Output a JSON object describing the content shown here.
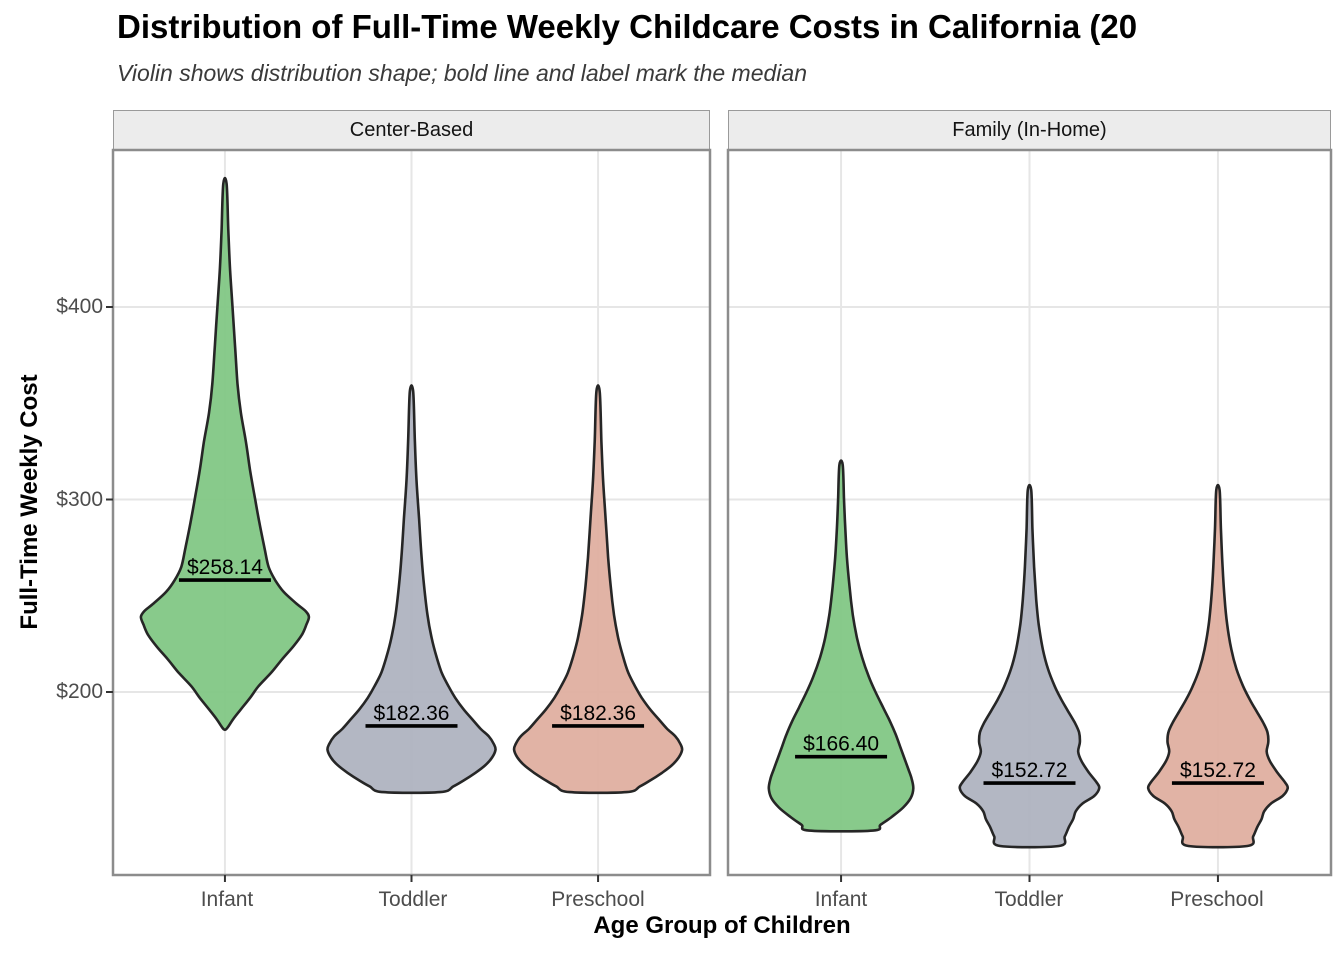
{
  "header": {
    "title": "Distribution of Full-Time Weekly Childcare Costs in California (20",
    "subtitle": "Violin shows distribution shape; bold line and label mark the median"
  },
  "axes": {
    "x_title": "Age Group of Children",
    "y_title": "Full-Time Weekly Cost"
  },
  "chart_data": {
    "type": "violin",
    "title": "Distribution of Full-Time Weekly Childcare Costs in California (20",
    "subtitle": "Violin shows distribution shape; bold line and label mark the median",
    "xlabel": "Age Group of Children",
    "ylabel": "Full-Time Weekly Cost",
    "grid": "major-only",
    "legend": "none",
    "ylim_approx": [
      105,
      482
    ],
    "y_ticks": [
      {
        "value": 400,
        "label": "$400"
      },
      {
        "value": 300,
        "label": "$300"
      },
      {
        "value": 200,
        "label": "$200"
      }
    ],
    "categories": [
      "Infant",
      "Toddler",
      "Preschool"
    ],
    "colors": {
      "infant_fill": "#82C785",
      "toddler_fill": "#AFB3C0",
      "preschool_fill": "#DFAFA0",
      "violin_outline": "#262626",
      "median_line": "#000000",
      "gridline": "#E6E6E6",
      "panel_border": "#8C8C8C",
      "strip_bg": "#ECECEC"
    },
    "facets": [
      {
        "label": "Center-Based",
        "violins": [
          {
            "category": "Infant",
            "fill": "#82C785",
            "median": 258.14,
            "median_label": "$258.14",
            "min": 180.5,
            "max": 464,
            "profile": [
              [
                464,
                0.02
              ],
              [
                440,
                0.04
              ],
              [
                420,
                0.06
              ],
              [
                400,
                0.09
              ],
              [
                380,
                0.12
              ],
              [
                360,
                0.15
              ],
              [
                345,
                0.19
              ],
              [
                330,
                0.25
              ],
              [
                315,
                0.3
              ],
              [
                300,
                0.36
              ],
              [
                288,
                0.41
              ],
              [
                275,
                0.47
              ],
              [
                265,
                0.52
              ],
              [
                258,
                0.6
              ],
              [
                252,
                0.7
              ],
              [
                246,
                0.85
              ],
              [
                242,
                0.96
              ],
              [
                239,
                1.0
              ],
              [
                235,
                0.97
              ],
              [
                230,
                0.92
              ],
              [
                224,
                0.82
              ],
              [
                217,
                0.68
              ],
              [
                210,
                0.55
              ],
              [
                203,
                0.4
              ],
              [
                197,
                0.3
              ],
              [
                191,
                0.19
              ],
              [
                186,
                0.1
              ],
              [
                182,
                0.04
              ],
              [
                180.5,
                0.01
              ]
            ]
          },
          {
            "category": "Toddler",
            "fill": "#AFB3C0",
            "median": 182.36,
            "median_label": "$182.36",
            "min": 148,
            "max": 356,
            "profile": [
              [
                356,
                0.02
              ],
              [
                330,
                0.04
              ],
              [
                310,
                0.06
              ],
              [
                290,
                0.09
              ],
              [
                270,
                0.12
              ],
              [
                255,
                0.15
              ],
              [
                240,
                0.19
              ],
              [
                228,
                0.24
              ],
              [
                218,
                0.3
              ],
              [
                210,
                0.36
              ],
              [
                203,
                0.44
              ],
              [
                197,
                0.52
              ],
              [
                191,
                0.62
              ],
              [
                186,
                0.72
              ],
              [
                181,
                0.82
              ],
              [
                177,
                0.92
              ],
              [
                173,
                0.98
              ],
              [
                170,
                1.0
              ],
              [
                166,
                0.96
              ],
              [
                162,
                0.88
              ],
              [
                158,
                0.76
              ],
              [
                154,
                0.62
              ],
              [
                151,
                0.5
              ],
              [
                148,
                0.34
              ]
            ]
          },
          {
            "category": "Preschool",
            "fill": "#DFAFA0",
            "median": 182.36,
            "median_label": "$182.36",
            "min": 148,
            "max": 356,
            "profile": [
              [
                356,
                0.02
              ],
              [
                330,
                0.04
              ],
              [
                310,
                0.06
              ],
              [
                290,
                0.09
              ],
              [
                270,
                0.12
              ],
              [
                255,
                0.15
              ],
              [
                240,
                0.19
              ],
              [
                228,
                0.24
              ],
              [
                218,
                0.3
              ],
              [
                210,
                0.36
              ],
              [
                203,
                0.44
              ],
              [
                197,
                0.52
              ],
              [
                191,
                0.62
              ],
              [
                186,
                0.72
              ],
              [
                181,
                0.82
              ],
              [
                177,
                0.92
              ],
              [
                173,
                0.98
              ],
              [
                170,
                1.0
              ],
              [
                166,
                0.96
              ],
              [
                162,
                0.88
              ],
              [
                158,
                0.76
              ],
              [
                154,
                0.62
              ],
              [
                151,
                0.5
              ],
              [
                148,
                0.34
              ]
            ]
          }
        ]
      },
      {
        "label": "Family (In-Home)",
        "violins": [
          {
            "category": "Infant",
            "fill": "#82C785",
            "median": 166.4,
            "median_label": "$166.40",
            "min": 128,
            "max": 318,
            "profile": [
              [
                318,
                0.02
              ],
              [
                300,
                0.035
              ],
              [
                285,
                0.05
              ],
              [
                270,
                0.07
              ],
              [
                255,
                0.1
              ],
              [
                240,
                0.14
              ],
              [
                228,
                0.19
              ],
              [
                218,
                0.25
              ],
              [
                208,
                0.33
              ],
              [
                200,
                0.41
              ],
              [
                192,
                0.5
              ],
              [
                185,
                0.58
              ],
              [
                178,
                0.65
              ],
              [
                172,
                0.7
              ],
              [
                166,
                0.75
              ],
              [
                160,
                0.8
              ],
              [
                155,
                0.84
              ],
              [
                150,
                0.86
              ],
              [
                145,
                0.83
              ],
              [
                140,
                0.74
              ],
              [
                135,
                0.6
              ],
              [
                131,
                0.47
              ],
              [
                128,
                0.38
              ]
            ]
          },
          {
            "category": "Toddler",
            "fill": "#AFB3C0",
            "median": 152.72,
            "median_label": "$152.72",
            "min": 120,
            "max": 305,
            "profile": [
              [
                305,
                0.02
              ],
              [
                285,
                0.035
              ],
              [
                265,
                0.055
              ],
              [
                248,
                0.08
              ],
              [
                235,
                0.11
              ],
              [
                222,
                0.16
              ],
              [
                212,
                0.22
              ],
              [
                203,
                0.3
              ],
              [
                196,
                0.38
              ],
              [
                190,
                0.46
              ],
              [
                184,
                0.54
              ],
              [
                179,
                0.59
              ],
              [
                174,
                0.6
              ],
              [
                169,
                0.58
              ],
              [
                164,
                0.62
              ],
              [
                158,
                0.71
              ],
              [
                153,
                0.8
              ],
              [
                150,
                0.83
              ],
              [
                146,
                0.77
              ],
              [
                142,
                0.63
              ],
              [
                138,
                0.55
              ],
              [
                134,
                0.52
              ],
              [
                130,
                0.47
              ],
              [
                125,
                0.42
              ],
              [
                120,
                0.35
              ]
            ]
          },
          {
            "category": "Preschool",
            "fill": "#DFAFA0",
            "median": 152.72,
            "median_label": "$152.72",
            "min": 120,
            "max": 305,
            "profile": [
              [
                305,
                0.02
              ],
              [
                285,
                0.035
              ],
              [
                265,
                0.055
              ],
              [
                248,
                0.08
              ],
              [
                235,
                0.11
              ],
              [
                222,
                0.16
              ],
              [
                212,
                0.22
              ],
              [
                203,
                0.3
              ],
              [
                196,
                0.38
              ],
              [
                190,
                0.46
              ],
              [
                184,
                0.54
              ],
              [
                179,
                0.59
              ],
              [
                174,
                0.6
              ],
              [
                169,
                0.58
              ],
              [
                164,
                0.62
              ],
              [
                158,
                0.71
              ],
              [
                153,
                0.8
              ],
              [
                150,
                0.83
              ],
              [
                146,
                0.77
              ],
              [
                142,
                0.63
              ],
              [
                138,
                0.55
              ],
              [
                134,
                0.52
              ],
              [
                130,
                0.47
              ],
              [
                125,
                0.42
              ],
              [
                120,
                0.35
              ]
            ]
          }
        ]
      }
    ]
  }
}
